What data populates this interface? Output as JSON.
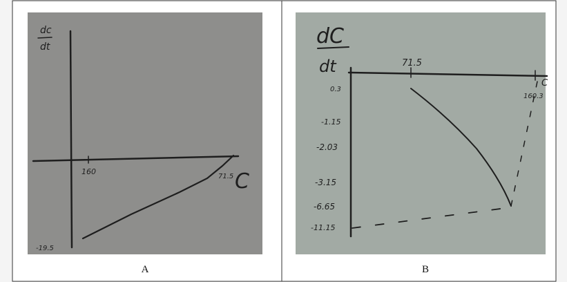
{
  "panels": [
    {
      "caption": "A",
      "y_label_top": "dc",
      "y_label_bottom": "dt",
      "x_label": "C",
      "notes": [
        "160",
        "71.5",
        "-19.5"
      ]
    },
    {
      "caption": "B",
      "y_label_top": "dC",
      "y_label_bottom": "dt",
      "x_label": "C",
      "notes": [
        "71.5",
        "160.3",
        "0.3",
        "-1.15",
        "-2.03",
        "-3.15",
        "-6.65",
        "-11.15"
      ]
    }
  ]
}
